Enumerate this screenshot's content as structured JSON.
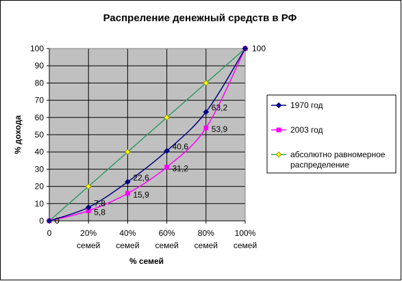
{
  "chart_data": {
    "type": "line",
    "title": "Распреление денежный средств в РФ",
    "xlabel": "% семей",
    "ylabel": "% дохода",
    "x": [
      0,
      20,
      40,
      60,
      80,
      100
    ],
    "x_ticks": [
      {
        "value": 0,
        "line1": "0",
        "line2": ""
      },
      {
        "value": 20,
        "line1": "20%",
        "line2": "семей"
      },
      {
        "value": 40,
        "line1": "40%",
        "line2": "семей"
      },
      {
        "value": 60,
        "line1": "60%",
        "line2": "семей"
      },
      {
        "value": 80,
        "line1": "80%",
        "line2": "семей"
      },
      {
        "value": 100,
        "line1": "100%",
        "line2": "семей"
      }
    ],
    "ylim": [
      0,
      100
    ],
    "y_ticks": [
      0,
      10,
      20,
      30,
      40,
      50,
      60,
      70,
      80,
      90,
      100
    ],
    "grid": true,
    "plot_background": "#c0c0c0",
    "legend_position": "right",
    "series": [
      {
        "name": "1970 год",
        "color": "#000080",
        "marker": "diamond",
        "x": [
          0,
          20,
          40,
          60,
          80,
          100
        ],
        "values": [
          0,
          7.8,
          22.6,
          40.6,
          63.2,
          100
        ],
        "labels": [
          "0",
          "7,8",
          "22,6",
          "40,6",
          "63,2",
          "100"
        ]
      },
      {
        "name": "2003 год",
        "color": "#ff00ff",
        "marker": "square",
        "x": [
          0,
          20,
          40,
          60,
          80,
          100
        ],
        "values": [
          0,
          5.8,
          15.9,
          31.2,
          53.9,
          100
        ],
        "labels": [
          "0",
          "5,8",
          "15,9",
          "31,2",
          "53,9",
          ""
        ]
      },
      {
        "name": "абсолютно равномерное распределение",
        "name_lines": [
          "абсолютно равномерное",
          "распределение"
        ],
        "color": "#339966",
        "marker_color": "#ffff00",
        "marker": "diamond",
        "x": [
          0,
          20,
          40,
          60,
          80,
          100
        ],
        "values": [
          0,
          20,
          40,
          60,
          80,
          100
        ],
        "labels": []
      }
    ]
  }
}
